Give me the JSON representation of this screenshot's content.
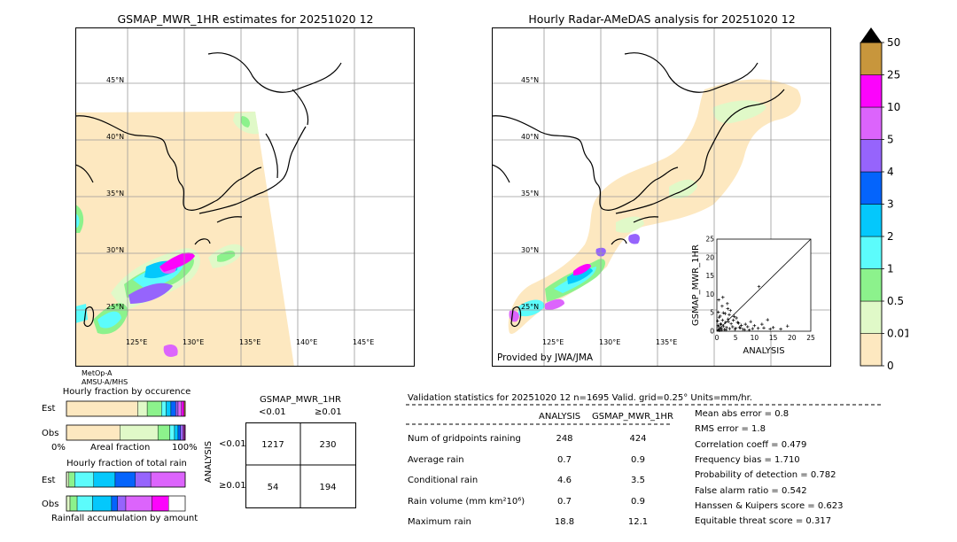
{
  "left_map": {
    "title": "GSMAP_MWR_1HR estimates for 20251020 12",
    "lat_labels": [
      "45°N",
      "40°N",
      "35°N",
      "30°N",
      "25°N"
    ],
    "lon_labels": [
      "125°E",
      "130°E",
      "135°E",
      "140°E",
      "145°E"
    ],
    "sensor_lines": [
      "MetOp-A",
      "AMSU-A/MHS"
    ]
  },
  "right_map": {
    "title": "Hourly Radar-AMeDAS analysis for 20251020 12",
    "lat_labels": [
      "45°N",
      "40°N",
      "35°N",
      "30°N",
      "25°N"
    ],
    "lon_labels": [
      "125°E",
      "130°E",
      "135°E"
    ],
    "credit": "Provided by JWA/JMA"
  },
  "colorbar": {
    "labels": [
      "0",
      "0.01",
      "0.5",
      "1",
      "2",
      "3",
      "4",
      "5",
      "10",
      "25",
      "50"
    ],
    "colors": [
      "#fde8c0",
      "#e0f9c8",
      "#8cf28c",
      "#5cfcfc",
      "#04c8fc",
      "#0464fc",
      "#9664fc",
      "#dc64fc",
      "#fc04fc",
      "#c8963c"
    ],
    "over_color": "#000000"
  },
  "scatter": {
    "xlabel": "ANALYSIS",
    "ylabel": "GSMAP_MWR_1HR",
    "ticks": [
      "0",
      "5",
      "10",
      "15",
      "20",
      "25"
    ]
  },
  "chart_data": {
    "type": "scatter",
    "x": [
      0.3,
      0.5,
      0.8,
      1.0,
      1.2,
      1.5,
      1.8,
      2.0,
      2.3,
      2.6,
      3.0,
      3.4,
      3.8,
      4.2,
      4.6,
      5.0,
      5.5,
      6.0,
      6.5,
      7.0,
      7.6,
      8.2,
      9.0,
      10.0,
      11.0,
      12.0,
      13.5,
      15.0,
      17.0,
      18.8,
      0.4,
      0.9,
      1.4,
      2.2,
      2.8,
      3.6,
      4.4,
      5.2,
      6.3,
      7.4,
      0.2,
      0.6,
      1.1,
      1.7,
      2.4,
      3.1,
      0.3,
      0.7,
      1.3,
      4.8,
      9.5,
      12.5,
      14.2,
      0.5,
      1.6,
      2.9,
      3.3,
      5.8,
      8.6,
      11.2
    ],
    "y": [
      0.4,
      1.2,
      0.6,
      2.0,
      0.9,
      3.0,
      1.4,
      0.5,
      2.4,
      1.0,
      3.3,
      0.7,
      2.0,
      1.2,
      4.0,
      0.8,
      2.4,
      1.0,
      1.6,
      0.5,
      1.9,
      1.2,
      2.6,
      1.5,
      0.8,
      1.9,
      3.1,
      1.0,
      0.6,
      1.4,
      5.2,
      4.1,
      6.8,
      4.8,
      7.5,
      5.6,
      3.0,
      3.6,
      0.9,
      0.4,
      2.8,
      3.8,
      1.8,
      5.0,
      0.3,
      2.6,
      1.6,
      0.2,
      0.3,
      0.5,
      0.7,
      0.9,
      0.6,
      8.5,
      9.2,
      6.1,
      4.5,
      2.2,
      0.3,
      12.1
    ],
    "xlim": [
      0,
      25
    ],
    "ylim": [
      0,
      25
    ],
    "xlabel": "ANALYSIS",
    "ylabel": "GSMAP_MWR_1HR"
  },
  "fraction_occurrence": {
    "title": "Hourly fraction by occurence",
    "est_label": "Est",
    "obs_label": "Obs",
    "axis_left": "0%",
    "axis_mid": "Areal fraction",
    "axis_right": "100%",
    "est_segments": [
      0.6,
      0.08,
      0.12,
      0.04,
      0.04,
      0.04,
      0.02,
      0.03,
      0.02,
      0.01
    ],
    "obs_segments": [
      0.45,
      0.32,
      0.1,
      0.04,
      0.03,
      0.02,
      0.02,
      0.01,
      0.007,
      0.003
    ]
  },
  "fraction_total": {
    "title": "Hourly fraction of total rain",
    "est_label": "Est",
    "obs_label": "Obs",
    "footer": "Rainfall accumulation by amount",
    "est_segments": [
      0.0,
      0.02,
      0.05,
      0.16,
      0.18,
      0.17,
      0.13,
      0.29,
      0.0,
      0.0
    ],
    "obs_segments": [
      0.0,
      0.03,
      0.06,
      0.13,
      0.16,
      0.05,
      0.07,
      0.22,
      0.14,
      0.0
    ]
  },
  "contingency": {
    "title": "GSMAP_MWR_1HR",
    "col_lt": "<0.01",
    "col_ge": "≥0.01",
    "row_lt": "<0.01",
    "row_ge": "≥0.01",
    "side_label": "ANALYSIS",
    "cells": [
      "1217",
      "230",
      "54",
      "194"
    ]
  },
  "validation": {
    "header": "Validation statistics for 20251020 12  n=1695 Valid. grid=0.25° Units=mm/hr.",
    "col_a": "ANALYSIS",
    "col_b": "GSMAP_MWR_1HR",
    "rows": [
      {
        "label": "Num of gridpoints raining",
        "a": "248",
        "b": "424"
      },
      {
        "label": "Average rain",
        "a": "0.7",
        "b": "0.9"
      },
      {
        "label": "Conditional rain",
        "a": "4.6",
        "b": "3.5"
      },
      {
        "label": "Rain volume (mm km²10⁶)",
        "a": "0.7",
        "b": "0.9"
      },
      {
        "label": "Maximum rain",
        "a": "18.8",
        "b": "12.1"
      }
    ],
    "scores": [
      "Mean abs error =    0.8",
      "RMS error =    1.8",
      "Correlation coeff =  0.479",
      "Frequency bias =  1.710",
      "Probability of detection =  0.782",
      "False alarm ratio =  0.542",
      "Hanssen & Kuipers score =  0.623",
      "Equitable threat score =  0.317"
    ]
  }
}
